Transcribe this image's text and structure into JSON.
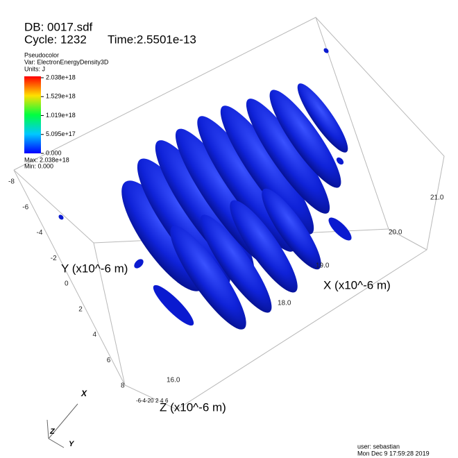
{
  "header": {
    "db": "DB: 0017.sdf",
    "cycle": "Cycle: 1232",
    "time": "Time:2.5501e-13"
  },
  "legend": {
    "plot": "Pseudocolor",
    "var": "Var: ElectronEnergyDensity3D",
    "units": "Units: J",
    "ticks": [
      "2.038e+18",
      "1.529e+18",
      "1.019e+18",
      "5.095e+17",
      "0.000"
    ],
    "max": "Max: 2.038e+18",
    "min": "Min: 0.000"
  },
  "axes": {
    "x_title": "X (x10^-6 m)",
    "y_title": "Y (x10^-6 m)",
    "z_title": "Z (x10^-6 m)",
    "x_ticks": [
      "16.0",
      "18.0",
      "19.0",
      "20.0",
      "21.0"
    ],
    "y_ticks": [
      "-8",
      "-6",
      "-4",
      "-2",
      "0",
      "2",
      "4",
      "6",
      "8"
    ],
    "z_ticks": [
      "-6",
      "-4",
      "-2",
      "0",
      "2",
      "4",
      "6"
    ]
  },
  "triad": {
    "x": "X",
    "y": "Y",
    "z": "Z"
  },
  "footer": {
    "user": "user: sebastian",
    "date": "Mon Dec  9 17:59:28 2019"
  }
}
